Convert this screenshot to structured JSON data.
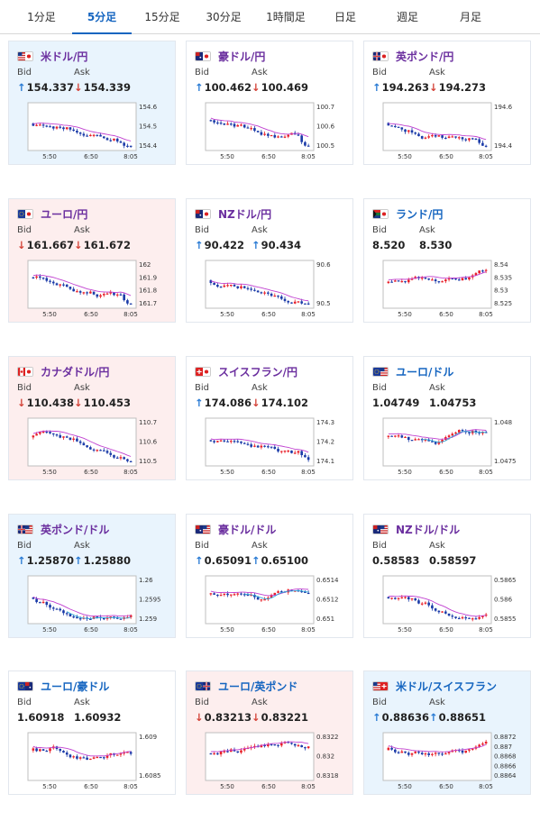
{
  "tabs": [
    {
      "label": "1分足",
      "active": false
    },
    {
      "label": "5分足",
      "active": true
    },
    {
      "label": "15分足",
      "active": false
    },
    {
      "label": "30分足",
      "active": false
    },
    {
      "label": "1時間足",
      "active": false
    },
    {
      "label": "日足",
      "active": false
    },
    {
      "label": "週足",
      "active": false
    },
    {
      "label": "月足",
      "active": false
    }
  ],
  "labels": {
    "bid": "Bid",
    "ask": "Ask"
  },
  "colors": {
    "up": "#2a7bd4",
    "down": "#d4443a",
    "candle_up": "#e8202a",
    "candle_down": "#1a3aa8",
    "ma": "#c040d0",
    "ma2": "#30a8d8",
    "pair": "#6b2f9f",
    "pair_alt": "#1565c0"
  },
  "cards": [
    {
      "pair": "米ドル/円",
      "flag": "us-jp-flag",
      "bg": "up",
      "bid": "154.337",
      "bid_dir": "up",
      "ask": "154.339",
      "ask_dir": "down",
      "x_ticks": [
        "5:50",
        "6:50",
        "8:05"
      ],
      "y_ticks": [
        "154.6",
        "154.5",
        "154.4"
      ],
      "ylim": [
        154.35,
        154.62
      ],
      "trend": "down_end"
    },
    {
      "pair": "豪ドル/円",
      "flag": "au-jp-flag",
      "bg": "flat",
      "bid": "100.462",
      "bid_dir": "up",
      "ask": "100.469",
      "ask_dir": "down",
      "x_ticks": [
        "5:50",
        "6:50",
        "8:05"
      ],
      "y_ticks": [
        "100.7",
        "100.6",
        "100.5"
      ],
      "ylim": [
        100.45,
        100.72
      ],
      "trend": "down_end"
    },
    {
      "pair": "英ポンド/円",
      "flag": "gb-jp-flag",
      "bg": "flat",
      "bid": "194.263",
      "bid_dir": "up",
      "ask": "194.273",
      "ask_dir": "down",
      "x_ticks": [
        "5:50",
        "6:50",
        "8:05"
      ],
      "y_ticks": [
        "194.6",
        "194.4"
      ],
      "ylim": [
        194.3,
        194.75
      ],
      "trend": "down_end"
    },
    {
      "pair": "ユーロ/円",
      "flag": "eu-jp-flag",
      "bg": "down",
      "bid": "161.667",
      "bid_dir": "down",
      "ask": "161.672",
      "ask_dir": "down",
      "x_ticks": [
        "5:50",
        "6:50",
        "8:05"
      ],
      "y_ticks": [
        "162",
        "161.9",
        "161.8",
        "161.7"
      ],
      "ylim": [
        161.68,
        162.05
      ],
      "trend": "down_end"
    },
    {
      "pair": "NZドル/円",
      "flag": "nz-jp-flag",
      "bg": "flat",
      "bid": "90.422",
      "bid_dir": "up",
      "ask": "90.434",
      "ask_dir": "up",
      "x_ticks": [
        "5:50",
        "6:50",
        "8:05"
      ],
      "y_ticks": [
        "90.6",
        "90.5"
      ],
      "ylim": [
        90.43,
        90.66
      ],
      "trend": "down_end"
    },
    {
      "pair": "ランド/円",
      "flag": "za-jp-flag",
      "bg": "flat",
      "bid": "8.520",
      "bid_dir": "none",
      "ask": "8.530",
      "ask_dir": "none",
      "x_ticks": [
        "5:50",
        "6:50",
        "8:05"
      ],
      "y_ticks": [
        "8.54",
        "8.535",
        "8.53",
        "8.525"
      ],
      "ylim": [
        8.522,
        8.542
      ],
      "trend": "flat"
    },
    {
      "pair": "カナダドル/円",
      "flag": "ca-jp-flag",
      "bg": "down",
      "bid": "110.438",
      "bid_dir": "down",
      "ask": "110.453",
      "ask_dir": "down",
      "x_ticks": [
        "5:50",
        "6:50",
        "8:05"
      ],
      "y_ticks": [
        "110.7",
        "110.6",
        "110.5"
      ],
      "ylim": [
        110.44,
        110.72
      ],
      "trend": "down_end"
    },
    {
      "pair": "スイスフラン/円",
      "flag": "ch-jp-flag",
      "bg": "flat",
      "bid": "174.086",
      "bid_dir": "up",
      "ask": "174.102",
      "ask_dir": "down",
      "x_ticks": [
        "5:50",
        "6:50",
        "8:05"
      ],
      "y_ticks": [
        "174.3",
        "174.2",
        "174.1"
      ],
      "ylim": [
        174.08,
        174.42
      ],
      "trend": "down_end"
    },
    {
      "pair": "ユーロ/ドル",
      "flag": "eu-us-flag",
      "bg": "flat",
      "bid": "1.04749",
      "bid_dir": "none",
      "ask": "1.04753",
      "ask_dir": "none",
      "x_ticks": [
        "5:50",
        "6:50",
        "8:05"
      ],
      "y_ticks": [
        "1.048",
        "1.0475"
      ],
      "ylim": [
        1.0472,
        1.0488
      ],
      "trend": "dip"
    },
    {
      "pair": "英ポンド/ドル",
      "flag": "gb-us-flag",
      "bg": "up",
      "bid": "1.25870",
      "bid_dir": "up",
      "ask": "1.25880",
      "ask_dir": "up",
      "x_ticks": [
        "5:50",
        "6:50",
        "8:05"
      ],
      "y_ticks": [
        "1.26",
        "1.2595",
        "1.259"
      ],
      "ylim": [
        1.2586,
        1.2603
      ],
      "trend": "dip"
    },
    {
      "pair": "豪ドル/ドル",
      "flag": "au-us-flag",
      "bg": "flat",
      "bid": "0.65091",
      "bid_dir": "up",
      "ask": "0.65100",
      "ask_dir": "up",
      "x_ticks": [
        "5:50",
        "6:50",
        "8:05"
      ],
      "y_ticks": [
        "0.6514",
        "0.6512",
        "0.651"
      ],
      "ylim": [
        0.6509,
        0.6516
      ],
      "trend": "dip"
    },
    {
      "pair": "NZドル/ドル",
      "flag": "nz-us-flag",
      "bg": "flat",
      "bid": "0.58583",
      "bid_dir": "none",
      "ask": "0.58597",
      "ask_dir": "none",
      "x_ticks": [
        "5:50",
        "6:50",
        "8:05"
      ],
      "y_ticks": [
        "0.5865",
        "0.586",
        "0.5855"
      ],
      "ylim": [
        0.5855,
        0.5867
      ],
      "trend": "down_flat"
    },
    {
      "pair": "ユーロ/豪ドル",
      "flag": "eu-au-flag",
      "bg": "flat",
      "bid": "1.60918",
      "bid_dir": "none",
      "ask": "1.60932",
      "ask_dir": "none",
      "x_ticks": [
        "5:50",
        "6:50",
        "8:05"
      ],
      "y_ticks": [
        "1.609",
        "1.6085"
      ],
      "ylim": [
        1.6082,
        1.6094
      ],
      "trend": "volatile"
    },
    {
      "pair": "ユーロ/英ポンド",
      "flag": "eu-gb-flag",
      "bg": "down",
      "bid": "0.83213",
      "bid_dir": "down",
      "ask": "0.83221",
      "ask_dir": "down",
      "x_ticks": [
        "5:50",
        "6:50",
        "8:05"
      ],
      "y_ticks": [
        "0.8322",
        "0.832",
        "0.8318"
      ],
      "ylim": [
        0.8317,
        0.8323
      ],
      "trend": "up"
    },
    {
      "pair": "米ドル/スイスフラン",
      "flag": "us-ch-flag",
      "bg": "up",
      "bid": "0.88636",
      "bid_dir": "up",
      "ask": "0.88651",
      "ask_dir": "up",
      "x_ticks": [
        "5:50",
        "6:50",
        "8:05"
      ],
      "y_ticks": [
        "0.8872",
        "0.887",
        "0.8868",
        "0.8866",
        "0.8864"
      ],
      "ylim": [
        0.8863,
        0.8873
      ],
      "trend": "volatile"
    }
  ]
}
